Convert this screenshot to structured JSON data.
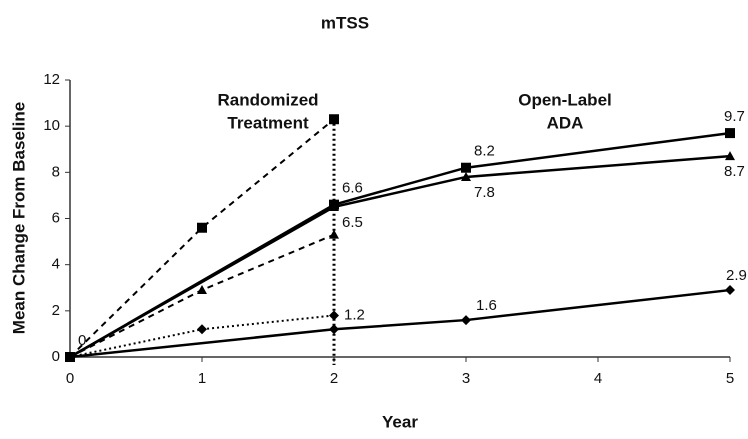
{
  "chart_data": {
    "type": "line",
    "title": "mTSS",
    "x_label": "Year",
    "y_label": "Mean Change From Baseline",
    "xlim": [
      0,
      5
    ],
    "ylim": [
      0,
      12
    ],
    "xticks": [
      0,
      1,
      2,
      3,
      4,
      5
    ],
    "yticks": [
      0,
      2,
      4,
      6,
      8,
      10,
      12
    ],
    "vline": 2,
    "annotations": [
      {
        "x": 1.5,
        "y": 11.1,
        "text": "Randomized"
      },
      {
        "x": 1.5,
        "y": 10.1,
        "text": "Treatment"
      },
      {
        "x": 3.75,
        "y": 11.1,
        "text": "Open-Label"
      },
      {
        "x": 3.75,
        "y": 10.1,
        "text": "ADA"
      }
    ],
    "series": [
      {
        "color": "#000000",
        "dash": "dashed",
        "marker": "square",
        "x": [
          0,
          1,
          2
        ],
        "values": [
          0,
          5.6,
          10.3
        ]
      },
      {
        "color": "#000000",
        "dash": "dashed",
        "marker": "triangle",
        "x": [
          0,
          1,
          2
        ],
        "values": [
          0,
          2.9,
          5.3
        ]
      },
      {
        "color": "#000000",
        "dash": "dotted",
        "marker": "diamond",
        "x": [
          0,
          1,
          2
        ],
        "values": [
          0,
          1.2,
          1.8
        ]
      },
      {
        "color": "#000000",
        "dash": "solid",
        "marker": "square",
        "x": [
          0,
          2,
          3,
          5
        ],
        "values": [
          0,
          6.6,
          8.2,
          9.7
        ],
        "data_labels": "above"
      },
      {
        "color": "#000000",
        "dash": "solid",
        "marker": "triangle",
        "x": [
          0,
          2,
          3,
          5
        ],
        "values": [
          0,
          6.5,
          7.8,
          8.7
        ],
        "data_labels": "below"
      },
      {
        "color": "#000000",
        "dash": "solid",
        "marker": "diamond",
        "x": [
          0,
          2,
          3,
          5
        ],
        "values": [
          0,
          1.2,
          1.6,
          2.9
        ],
        "data_labels": "right"
      }
    ]
  }
}
